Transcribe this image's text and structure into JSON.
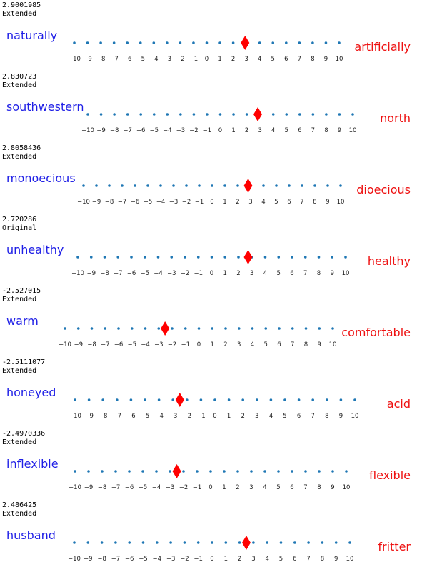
{
  "colors": {
    "left_word": "#1f1fe6",
    "right_word": "#ee1111",
    "dots": "#1f77b4",
    "marker": "#ff0000"
  },
  "chart_data": [
    {
      "type": "scatter",
      "score": "2.9001985",
      "status": "Extended",
      "left_label": "naturally",
      "right_label": "artificially",
      "x": [
        2.9001985
      ],
      "xlim": [
        -10,
        10
      ],
      "ticks": [
        -10,
        -9,
        -8,
        -7,
        -6,
        -5,
        -4,
        -3,
        -2,
        -1,
        0,
        1,
        2,
        3,
        4,
        5,
        6,
        7,
        8,
        9,
        10
      ],
      "marker": "diamond"
    },
    {
      "type": "scatter",
      "score": "2.830723",
      "status": "Extended",
      "left_label": "southwestern",
      "right_label": "north",
      "x": [
        2.830723
      ],
      "xlim": [
        -10,
        10
      ],
      "ticks": [
        -10,
        -9,
        -8,
        -7,
        -6,
        -5,
        -4,
        -3,
        -2,
        -1,
        0,
        1,
        2,
        3,
        4,
        5,
        6,
        7,
        8,
        9,
        10
      ],
      "marker": "diamond"
    },
    {
      "type": "scatter",
      "score": "2.8058436",
      "status": "Extended",
      "left_label": "monoecious",
      "right_label": "dioecious",
      "x": [
        2.8058436
      ],
      "xlim": [
        -10,
        10
      ],
      "ticks": [
        -10,
        -9,
        -8,
        -7,
        -6,
        -5,
        -4,
        -3,
        -2,
        -1,
        0,
        1,
        2,
        3,
        4,
        5,
        6,
        7,
        8,
        9,
        10
      ],
      "marker": "diamond"
    },
    {
      "type": "scatter",
      "score": "2.720286",
      "status": "Original",
      "left_label": "unhealthy",
      "right_label": "healthy",
      "x": [
        2.720286
      ],
      "xlim": [
        -10,
        10
      ],
      "ticks": [
        -10,
        -9,
        -8,
        -7,
        -6,
        -5,
        -4,
        -3,
        -2,
        -1,
        0,
        1,
        2,
        3,
        4,
        5,
        6,
        7,
        8,
        9,
        10
      ],
      "marker": "diamond"
    },
    {
      "type": "scatter",
      "score": "-2.527015",
      "status": "Extended",
      "left_label": "warm",
      "right_label": "comfortable",
      "x": [
        -2.527015
      ],
      "xlim": [
        -10,
        10
      ],
      "ticks": [
        -10,
        -9,
        -8,
        -7,
        -6,
        -5,
        -4,
        -3,
        -2,
        -1,
        0,
        1,
        2,
        3,
        4,
        5,
        6,
        7,
        8,
        9,
        10
      ],
      "marker": "diamond"
    },
    {
      "type": "scatter",
      "score": "-2.5111077",
      "status": "Extended",
      "left_label": "honeyed",
      "right_label": "acid",
      "x": [
        -2.5111077
      ],
      "xlim": [
        -10,
        10
      ],
      "ticks": [
        -10,
        -9,
        -8,
        -7,
        -6,
        -5,
        -4,
        -3,
        -2,
        -1,
        0,
        1,
        2,
        3,
        4,
        5,
        6,
        7,
        8,
        9,
        10
      ],
      "marker": "diamond"
    },
    {
      "type": "scatter",
      "score": "-2.4970336",
      "status": "Extended",
      "left_label": "inflexible",
      "right_label": "flexible",
      "x": [
        -2.4970336
      ],
      "xlim": [
        -10,
        10
      ],
      "ticks": [
        -10,
        -9,
        -8,
        -7,
        -6,
        -5,
        -4,
        -3,
        -2,
        -1,
        0,
        1,
        2,
        3,
        4,
        5,
        6,
        7,
        8,
        9,
        10
      ],
      "marker": "diamond"
    },
    {
      "type": "scatter",
      "score": "2.486425",
      "status": "Extended",
      "left_label": "husband",
      "right_label": "fritter",
      "x": [
        2.486425
      ],
      "xlim": [
        -10,
        10
      ],
      "ticks": [
        -10,
        -9,
        -8,
        -7,
        -6,
        -5,
        -4,
        -3,
        -2,
        -1,
        0,
        1,
        2,
        3,
        4,
        5,
        6,
        7,
        8,
        9,
        10
      ],
      "marker": "diamond"
    }
  ]
}
